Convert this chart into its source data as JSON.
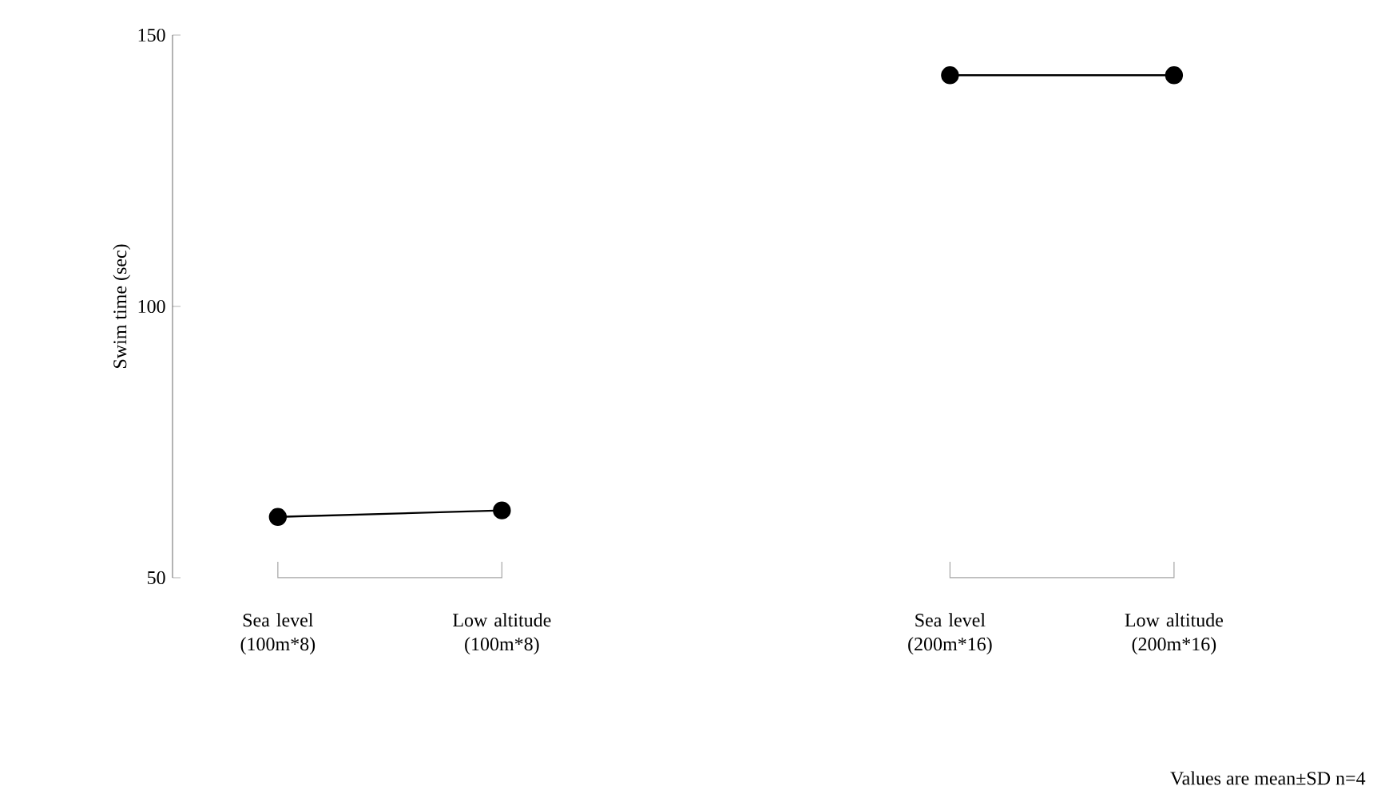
{
  "chart_data": {
    "type": "line",
    "categories": [
      "Sea level (100m*8)",
      "Low altitude (100m*8)",
      null,
      "Sea level (200m*16)",
      "Low altitude (200m*16)"
    ],
    "series": [
      {
        "color": "#000000",
        "values": [
          61.2,
          62.4,
          null,
          null,
          null
        ]
      },
      {
        "color": "#000000",
        "values": [
          null,
          null,
          null,
          142.6,
          142.6
        ]
      }
    ],
    "ylabel": "Swim time (sec)",
    "ylim": [
      50,
      150
    ],
    "yticks": [
      50,
      100,
      150
    ],
    "marker": "circle",
    "line_style": "solid",
    "annotations": [
      "Values are mean±SD n=4"
    ]
  }
}
